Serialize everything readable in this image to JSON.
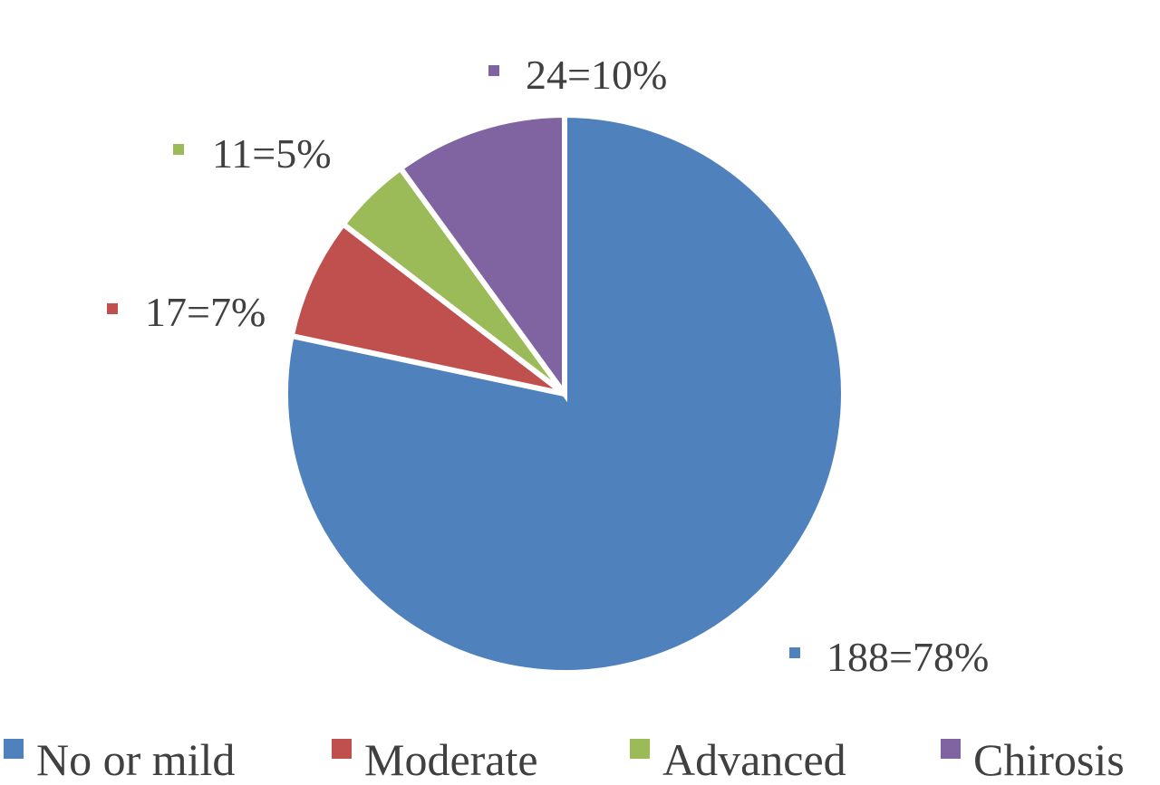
{
  "chart_data": {
    "type": "pie",
    "title": "",
    "slices": [
      {
        "name": "No or mild",
        "value": 188,
        "percent": 78,
        "label": "188=78%",
        "color": "#4f81bd"
      },
      {
        "name": "Moderate",
        "value": 17,
        "percent": 7,
        "label": "17=7%",
        "color": "#c0504d"
      },
      {
        "name": "Advanced",
        "value": 11,
        "percent": 5,
        "label": "11=5%",
        "color": "#9bbb59"
      },
      {
        "name": "Chirosis",
        "value": 24,
        "percent": 10,
        "label": "24=10%",
        "color": "#8064a2"
      }
    ],
    "legend_placement": "bottom"
  }
}
